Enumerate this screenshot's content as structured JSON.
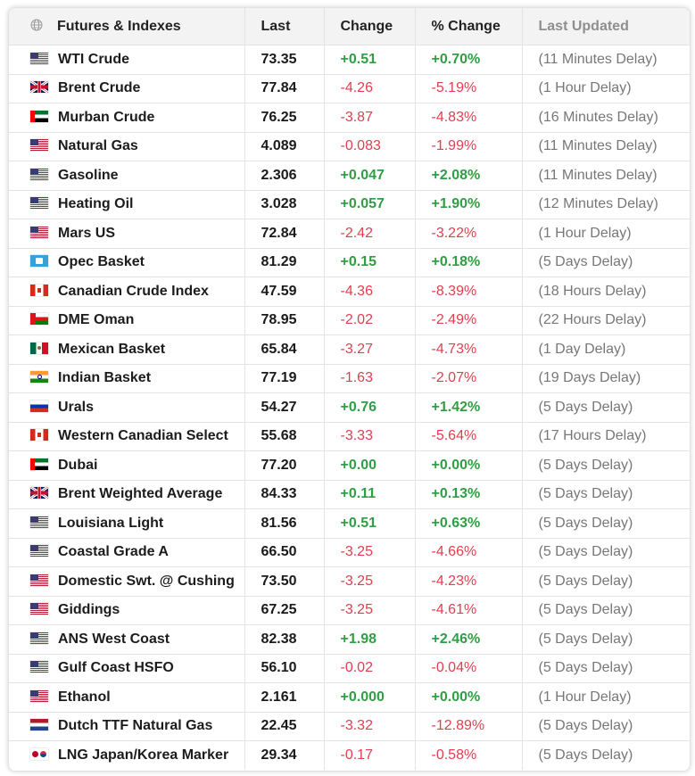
{
  "header": {
    "name": "Futures & Indexes",
    "last": "Last",
    "change": "Change",
    "pct_change": "% Change",
    "updated": "Last Updated",
    "icon": "globe-icon"
  },
  "colors": {
    "positive": "#2f9e44",
    "negative": "#e03e4f",
    "muted": "#777777"
  },
  "rows": [
    {
      "flag": "us",
      "name": "WTI Crude",
      "last": "73.35",
      "change": "+0.51",
      "pct": "+0.70%",
      "updated": "(11 Minutes Delay)",
      "dir": "pos"
    },
    {
      "flag": "gb",
      "name": "Brent Crude",
      "last": "77.84",
      "change": "-4.26",
      "pct": "-5.19%",
      "updated": "(1 Hour Delay)",
      "dir": "neg"
    },
    {
      "flag": "ae",
      "name": "Murban Crude",
      "last": "76.25",
      "change": "-3.87",
      "pct": "-4.83%",
      "updated": "(16 Minutes Delay)",
      "dir": "neg"
    },
    {
      "flag": "us",
      "name": "Natural Gas",
      "last": "4.089",
      "change": "-0.083",
      "pct": "-1.99%",
      "updated": "(11 Minutes Delay)",
      "dir": "neg"
    },
    {
      "flag": "us",
      "name": "Gasoline",
      "last": "2.306",
      "change": "+0.047",
      "pct": "+2.08%",
      "updated": "(11 Minutes Delay)",
      "dir": "pos"
    },
    {
      "flag": "us",
      "name": "Heating Oil",
      "last": "3.028",
      "change": "+0.057",
      "pct": "+1.90%",
      "updated": "(12 Minutes Delay)",
      "dir": "pos"
    },
    {
      "flag": "us",
      "name": "Mars US",
      "last": "72.84",
      "change": "-2.42",
      "pct": "-3.22%",
      "updated": "(1 Hour Delay)",
      "dir": "neg"
    },
    {
      "flag": "opec",
      "name": "Opec Basket",
      "last": "81.29",
      "change": "+0.15",
      "pct": "+0.18%",
      "updated": "(5 Days Delay)",
      "dir": "pos"
    },
    {
      "flag": "ca",
      "name": "Canadian Crude Index",
      "last": "47.59",
      "change": "-4.36",
      "pct": "-8.39%",
      "updated": "(18 Hours Delay)",
      "dir": "neg"
    },
    {
      "flag": "om",
      "name": "DME Oman",
      "last": "78.95",
      "change": "-2.02",
      "pct": "-2.49%",
      "updated": "(22 Hours Delay)",
      "dir": "neg"
    },
    {
      "flag": "mx",
      "name": "Mexican Basket",
      "last": "65.84",
      "change": "-3.27",
      "pct": "-4.73%",
      "updated": "(1 Day Delay)",
      "dir": "neg"
    },
    {
      "flag": "in",
      "name": "Indian Basket",
      "last": "77.19",
      "change": "-1.63",
      "pct": "-2.07%",
      "updated": "(19 Days Delay)",
      "dir": "neg"
    },
    {
      "flag": "ru",
      "name": "Urals",
      "last": "54.27",
      "change": "+0.76",
      "pct": "+1.42%",
      "updated": "(5 Days Delay)",
      "dir": "pos"
    },
    {
      "flag": "ca",
      "name": "Western Canadian Select",
      "last": "55.68",
      "change": "-3.33",
      "pct": "-5.64%",
      "updated": "(17 Hours Delay)",
      "dir": "neg"
    },
    {
      "flag": "ae",
      "name": "Dubai",
      "last": "77.20",
      "change": "+0.00",
      "pct": "+0.00%",
      "updated": "(5 Days Delay)",
      "dir": "pos"
    },
    {
      "flag": "gb",
      "name": "Brent Weighted Average",
      "last": "84.33",
      "change": "+0.11",
      "pct": "+0.13%",
      "updated": "(5 Days Delay)",
      "dir": "pos"
    },
    {
      "flag": "us",
      "name": "Louisiana Light",
      "last": "81.56",
      "change": "+0.51",
      "pct": "+0.63%",
      "updated": "(5 Days Delay)",
      "dir": "pos"
    },
    {
      "flag": "us",
      "name": "Coastal Grade A",
      "last": "66.50",
      "change": "-3.25",
      "pct": "-4.66%",
      "updated": "(5 Days Delay)",
      "dir": "neg"
    },
    {
      "flag": "us",
      "name": "Domestic Swt. @ Cushing",
      "last": "73.50",
      "change": "-3.25",
      "pct": "-4.23%",
      "updated": "(5 Days Delay)",
      "dir": "neg"
    },
    {
      "flag": "us",
      "name": "Giddings",
      "last": "67.25",
      "change": "-3.25",
      "pct": "-4.61%",
      "updated": "(5 Days Delay)",
      "dir": "neg"
    },
    {
      "flag": "us",
      "name": "ANS West Coast",
      "last": "82.38",
      "change": "+1.98",
      "pct": "+2.46%",
      "updated": "(5 Days Delay)",
      "dir": "pos"
    },
    {
      "flag": "us",
      "name": "Gulf Coast HSFO",
      "last": "56.10",
      "change": "-0.02",
      "pct": "-0.04%",
      "updated": "(5 Days Delay)",
      "dir": "neg"
    },
    {
      "flag": "us",
      "name": "Ethanol",
      "last": "2.161",
      "change": "+0.000",
      "pct": "+0.00%",
      "updated": "(1 Hour Delay)",
      "dir": "pos"
    },
    {
      "flag": "nl",
      "name": "Dutch TTF Natural Gas",
      "last": "22.45",
      "change": "-3.32",
      "pct": "-12.89%",
      "updated": "(5 Days Delay)",
      "dir": "neg"
    },
    {
      "flag": "jpkr",
      "name": "LNG Japan/Korea Marker",
      "last": "29.34",
      "change": "-0.17",
      "pct": "-0.58%",
      "updated": "(5 Days Delay)",
      "dir": "neg"
    }
  ]
}
